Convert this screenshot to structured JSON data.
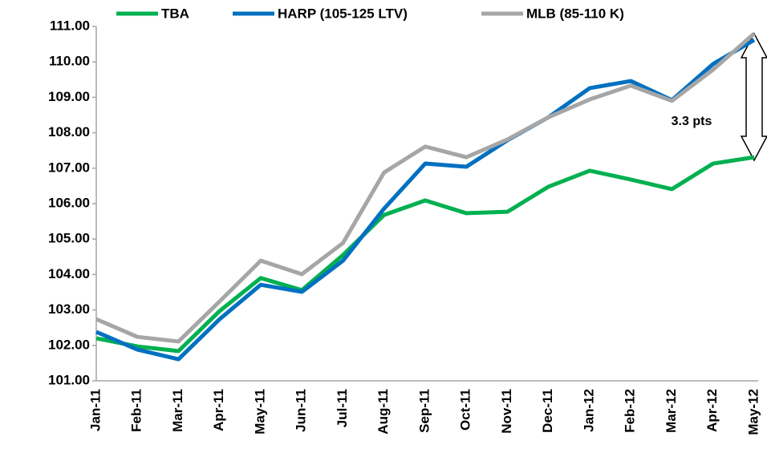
{
  "chart_data": {
    "type": "line",
    "categories": [
      "Jan-11",
      "Feb-11",
      "Mar-11",
      "Apr-11",
      "May-11",
      "Jun-11",
      "Jul-11",
      "Aug-11",
      "Sep-11",
      "Oct-11",
      "Nov-11",
      "Dec-11",
      "Jan-12",
      "Feb-12",
      "Mar-12",
      "Apr-12",
      "May-12"
    ],
    "series": [
      {
        "name": "TBA",
        "color": "#00b050",
        "values": [
          102.2,
          101.97,
          101.84,
          102.97,
          103.9,
          103.56,
          104.55,
          105.68,
          106.09,
          105.73,
          105.77,
          106.48,
          106.93,
          106.68,
          106.41,
          107.13,
          107.31
        ]
      },
      {
        "name": "HARP (105-125 LTV)",
        "color": "#0070c0",
        "values": [
          102.38,
          101.88,
          101.61,
          102.74,
          103.71,
          103.51,
          104.39,
          105.86,
          107.13,
          107.04,
          107.79,
          108.44,
          109.26,
          109.46,
          108.92,
          109.94,
          110.62
        ]
      },
      {
        "name": "MLB (85-110 K)",
        "color": "#a6a6a6",
        "values": [
          102.74,
          102.24,
          102.11,
          103.24,
          104.39,
          104.01,
          104.89,
          106.88,
          107.61,
          107.31,
          107.81,
          108.44,
          108.94,
          109.33,
          108.9,
          109.78,
          110.8
        ]
      }
    ],
    "ylim": [
      101,
      111
    ],
    "yticks": [
      {
        "value": 101,
        "label": "101.00"
      },
      {
        "value": 102,
        "label": "102.00"
      },
      {
        "value": 103,
        "label": "103.00"
      },
      {
        "value": 104,
        "label": "104.00"
      },
      {
        "value": 105,
        "label": "105.00"
      },
      {
        "value": 106,
        "label": "106.00"
      },
      {
        "value": 107,
        "label": "107.00"
      },
      {
        "value": 108,
        "label": "108.00"
      },
      {
        "value": 109,
        "label": "109.00"
      },
      {
        "value": 110,
        "label": "110.00"
      },
      {
        "value": 111,
        "label": "111.00"
      }
    ],
    "annotation": "3.3 pts",
    "grid": false
  }
}
